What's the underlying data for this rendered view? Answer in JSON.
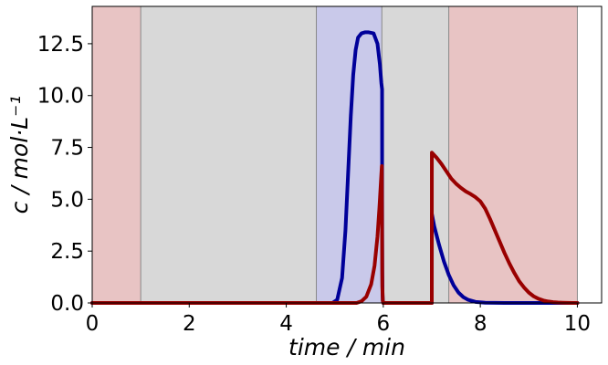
{
  "chart_data": {
    "type": "line",
    "title": "",
    "xlabel": "time / min",
    "ylabel": "c / mol·L⁻¹",
    "xlim": [
      0,
      10.5
    ],
    "ylim": [
      0,
      14.3
    ],
    "xticks": [
      0,
      2,
      4,
      6,
      8,
      10
    ],
    "xtick_labels": [
      "0",
      "2",
      "4",
      "6",
      "8",
      "10"
    ],
    "yticks": [
      0,
      2.5,
      5,
      7.5,
      10,
      12.5
    ],
    "ytick_labels": [
      "0.0",
      "2.5",
      "5.0",
      "7.5",
      "10.0",
      "12.5"
    ],
    "grid": false,
    "legend": "none",
    "regions": [
      {
        "x0": 0,
        "x1": 1.0,
        "color": "#e8c4c4"
      },
      {
        "x0": 1.0,
        "x1": 4.62,
        "color": "#d8d8d8"
      },
      {
        "x0": 4.62,
        "x1": 5.97,
        "color": "#c9c9ea"
      },
      {
        "x0": 5.97,
        "x1": 7.35,
        "color": "#d8d8d8"
      },
      {
        "x0": 7.35,
        "x1": 10.0,
        "color": "#e8c4c4"
      }
    ],
    "series": [
      {
        "color": "#000099",
        "x": [
          0,
          4.95,
          5.05,
          5.15,
          5.22,
          5.28,
          5.33,
          5.38,
          5.43,
          5.48,
          5.55,
          5.62,
          5.7,
          5.8,
          5.88,
          5.93,
          5.96,
          5.975,
          5.976,
          5.98,
          5.985,
          5.99,
          6.0,
          7.0,
          7.001,
          7.05,
          7.15,
          7.25,
          7.35,
          7.45,
          7.55,
          7.65,
          7.75,
          7.9,
          8.1,
          8.5,
          9.0,
          10.0
        ],
        "y": [
          0,
          0,
          0.15,
          1.2,
          3.5,
          6.5,
          9.0,
          11.0,
          12.2,
          12.8,
          13.0,
          13.05,
          13.05,
          13.0,
          12.5,
          11.5,
          10.6,
          10.3,
          5.0,
          1.5,
          0.4,
          0.1,
          0,
          0,
          4.3,
          3.7,
          2.8,
          2.0,
          1.35,
          0.85,
          0.5,
          0.28,
          0.15,
          0.05,
          0.01,
          0,
          0,
          0
        ]
      },
      {
        "color": "#990000",
        "x": [
          0,
          5.45,
          5.55,
          5.65,
          5.75,
          5.82,
          5.88,
          5.92,
          5.95,
          5.97,
          5.975,
          5.98,
          5.99,
          6.0,
          7.0,
          7.001,
          7.1,
          7.2,
          7.3,
          7.4,
          7.5,
          7.6,
          7.7,
          7.8,
          7.9,
          8.0,
          8.1,
          8.2,
          8.3,
          8.4,
          8.5,
          8.6,
          8.7,
          8.8,
          8.9,
          9.0,
          9.1,
          9.2,
          9.3,
          9.4,
          9.5,
          9.6,
          9.7,
          9.8,
          9.9,
          10.0
        ],
        "y": [
          0,
          0,
          0.08,
          0.3,
          0.9,
          1.8,
          3.2,
          4.6,
          5.8,
          6.6,
          3.0,
          0.8,
          0.1,
          0,
          0,
          7.25,
          7.0,
          6.7,
          6.35,
          6.0,
          5.75,
          5.55,
          5.38,
          5.25,
          5.1,
          4.9,
          4.55,
          4.05,
          3.5,
          2.95,
          2.4,
          1.9,
          1.45,
          1.05,
          0.75,
          0.5,
          0.32,
          0.2,
          0.12,
          0.07,
          0.04,
          0.02,
          0.01,
          0.005,
          0,
          0
        ]
      }
    ]
  }
}
